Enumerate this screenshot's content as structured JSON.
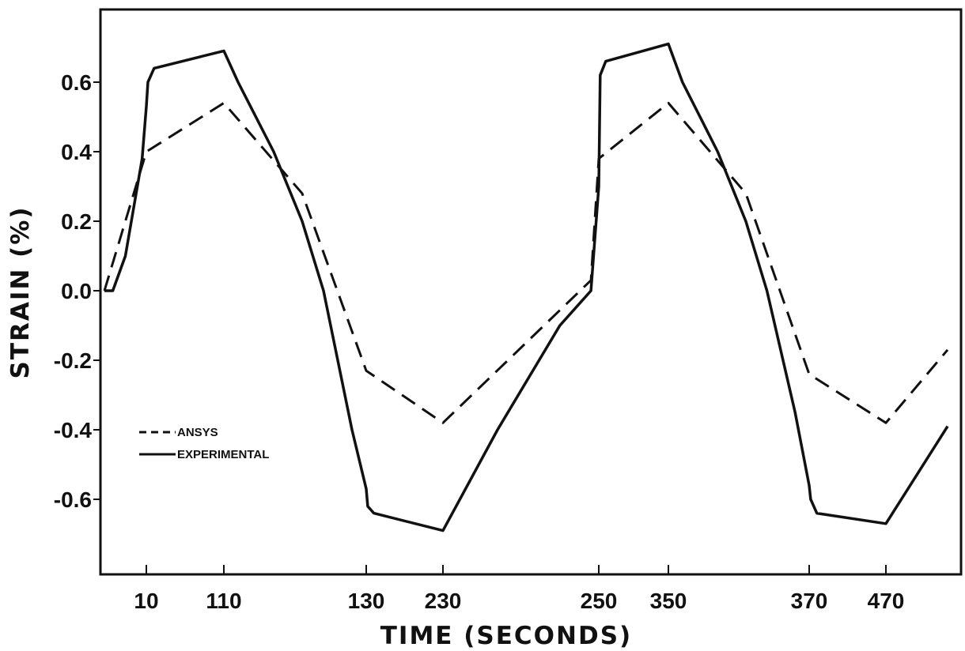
{
  "chart_data": {
    "type": "line",
    "xlabel": "TIME (SECONDS)",
    "ylabel": "STRAIN (%)",
    "ylim": [
      -0.8,
      0.8
    ],
    "yticks": [
      0.6,
      0.4,
      0.2,
      0.0,
      -0.2,
      -0.4,
      -0.6
    ],
    "ytick_labels": [
      "0.6",
      "0.4",
      "0.2",
      "0.0",
      "-0.2",
      "-0.4",
      "-0.6"
    ],
    "xticks": [
      10,
      110,
      130,
      230,
      250,
      350,
      370,
      470
    ],
    "xtick_labels": [
      "10",
      "110",
      "130",
      "230",
      "250",
      "350",
      "370",
      "470"
    ],
    "grid": false,
    "legend_position": "lower-left",
    "series": [
      {
        "name": "ANSYS",
        "style": "dashed",
        "color": "#111111",
        "x": [
          0,
          10,
          110,
          121,
          130,
          230,
          249,
          250,
          350,
          361,
          370,
          470,
          485
        ],
        "y": [
          0.0,
          0.4,
          0.54,
          0.28,
          -0.23,
          -0.38,
          0.03,
          0.38,
          0.54,
          0.28,
          -0.24,
          -0.38,
          -0.17
        ]
      },
      {
        "name": "EXPERIMENTAL",
        "style": "solid",
        "color": "#111111",
        "x": [
          0,
          2,
          5,
          9,
          10,
          12,
          20,
          110,
          112,
          117,
          121,
          124,
          128,
          130,
          132,
          140,
          230,
          237,
          245,
          249,
          250,
          252,
          260,
          350,
          352,
          357,
          361,
          364,
          368,
          370,
          372,
          380,
          470,
          485
        ],
        "y": [
          0.0,
          0.0,
          0.1,
          0.38,
          0.53,
          0.6,
          0.64,
          0.69,
          0.6,
          0.4,
          0.2,
          0.0,
          -0.4,
          -0.57,
          -0.62,
          -0.64,
          -0.69,
          -0.4,
          -0.1,
          0.0,
          0.3,
          0.62,
          0.66,
          0.71,
          0.6,
          0.4,
          0.2,
          0.0,
          -0.35,
          -0.56,
          -0.6,
          -0.64,
          -0.67,
          -0.39
        ]
      }
    ]
  }
}
